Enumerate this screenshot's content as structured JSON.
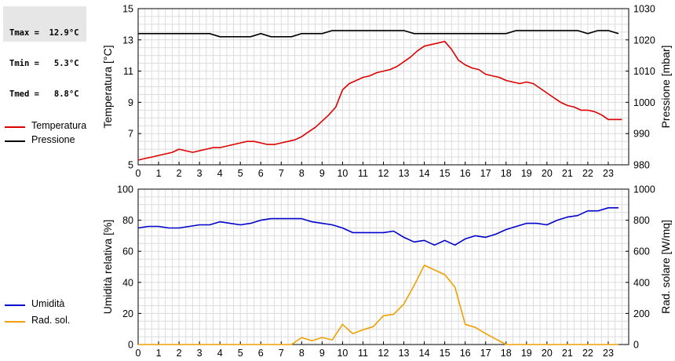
{
  "stats": [
    {
      "label": "Tmax",
      "value": "12.9°C"
    },
    {
      "label": "Tmin",
      "value": "5.3°C"
    },
    {
      "label": "Tmed",
      "value": "8.8°C"
    }
  ],
  "legend_top": [
    {
      "name": "Temperatura",
      "color": "#dd0000"
    },
    {
      "name": "Pressione",
      "color": "#000000"
    }
  ],
  "legend_bottom": [
    {
      "name": "Umidità",
      "color": "#0000cc"
    },
    {
      "name": "Rad. sol.",
      "color": "#f0a000"
    }
  ],
  "chart_data": [
    {
      "type": "line",
      "xlabel": "",
      "x_ticks": [
        "0",
        "1",
        "2",
        "3",
        "4",
        "5",
        "6",
        "7",
        "8",
        "9",
        "10",
        "11",
        "12",
        "13",
        "14",
        "15",
        "16",
        "17",
        "18",
        "19",
        "20",
        "21",
        "22",
        "23"
      ],
      "xlim": [
        0,
        24
      ],
      "grid": true,
      "left_axis": {
        "label": "Temperatura [°C]",
        "ylim": [
          5,
          15
        ],
        "ticks": [
          "5",
          "7",
          "9",
          "11",
          "13",
          "15"
        ]
      },
      "right_axis": {
        "label": "Pressione [mbar]",
        "ylim": [
          980,
          1030
        ],
        "ticks": [
          "980",
          "990",
          "1000",
          "1010",
          "1020",
          "1030"
        ]
      },
      "series": [
        {
          "name": "Temperatura",
          "axis": "left",
          "color": "#dd0000",
          "x": [
            0,
            0.33,
            0.67,
            1,
            1.33,
            1.67,
            2,
            2.33,
            2.67,
            3,
            3.33,
            3.67,
            4,
            4.33,
            4.67,
            5,
            5.33,
            5.67,
            6,
            6.33,
            6.67,
            7,
            7.33,
            7.67,
            8,
            8.33,
            8.67,
            9,
            9.33,
            9.67,
            10,
            10.33,
            10.67,
            11,
            11.33,
            11.67,
            12,
            12.33,
            12.67,
            13,
            13.33,
            13.67,
            14,
            14.33,
            14.67,
            15,
            15.33,
            15.67,
            16,
            16.33,
            16.67,
            17,
            17.33,
            17.67,
            18,
            18.33,
            18.67,
            19,
            19.33,
            19.67,
            20,
            20.33,
            20.67,
            21,
            21.33,
            21.67,
            22,
            22.33,
            22.67,
            23,
            23.33,
            23.67
          ],
          "values": [
            5.3,
            5.4,
            5.5,
            5.6,
            5.7,
            5.8,
            6.0,
            5.9,
            5.8,
            5.9,
            6.0,
            6.1,
            6.1,
            6.2,
            6.3,
            6.4,
            6.5,
            6.5,
            6.4,
            6.3,
            6.3,
            6.4,
            6.5,
            6.6,
            6.8,
            7.1,
            7.4,
            7.8,
            8.2,
            8.7,
            9.8,
            10.2,
            10.4,
            10.6,
            10.7,
            10.9,
            11.0,
            11.1,
            11.3,
            11.6,
            11.9,
            12.3,
            12.6,
            12.7,
            12.8,
            12.9,
            12.4,
            11.7,
            11.4,
            11.2,
            11.1,
            10.8,
            10.7,
            10.6,
            10.4,
            10.3,
            10.2,
            10.3,
            10.2,
            9.9,
            9.6,
            9.3,
            9.0,
            8.8,
            8.7,
            8.5,
            8.5,
            8.4,
            8.2,
            7.9,
            7.9,
            7.9
          ]
        },
        {
          "name": "Pressione",
          "axis": "right",
          "color": "#000000",
          "x": [
            0,
            1,
            2,
            3,
            3.5,
            4,
            5,
            5.5,
            6,
            6.5,
            7,
            7.5,
            8,
            9,
            9.5,
            10,
            11,
            12,
            13,
            13.5,
            14,
            15,
            16,
            17,
            18,
            18.5,
            19,
            20,
            21,
            21.5,
            22,
            22.5,
            23,
            23.5
          ],
          "values": [
            1022,
            1022,
            1022,
            1022,
            1022,
            1021,
            1021,
            1021,
            1022,
            1021,
            1021,
            1021,
            1022,
            1022,
            1023,
            1023,
            1023,
            1023,
            1023,
            1022,
            1022,
            1022,
            1022,
            1022,
            1022,
            1023,
            1023,
            1023,
            1023,
            1023,
            1022,
            1023,
            1023,
            1022
          ]
        }
      ]
    },
    {
      "type": "line",
      "xlabel": "",
      "x_ticks": [
        "0",
        "1",
        "2",
        "3",
        "4",
        "5",
        "6",
        "7",
        "8",
        "9",
        "10",
        "11",
        "12",
        "13",
        "14",
        "15",
        "16",
        "17",
        "18",
        "19",
        "20",
        "21",
        "22",
        "23"
      ],
      "xlim": [
        0,
        24
      ],
      "grid": true,
      "left_axis": {
        "label": "Umidità relativa [%]",
        "ylim": [
          0,
          100
        ],
        "ticks": [
          "0",
          "20",
          "40",
          "60",
          "80",
          "100"
        ]
      },
      "right_axis": {
        "label": "Rad. solare [W/mq]",
        "ylim": [
          0,
          1000
        ],
        "ticks": [
          "0",
          "200",
          "400",
          "600",
          "800",
          "1000"
        ]
      },
      "series": [
        {
          "name": "Umidità",
          "axis": "left",
          "color": "#0000cc",
          "x": [
            0,
            0.5,
            1,
            1.5,
            2,
            2.5,
            3,
            3.5,
            4,
            4.5,
            5,
            5.5,
            6,
            6.5,
            7,
            7.5,
            8,
            8.5,
            9,
            9.5,
            10,
            10.5,
            11,
            11.5,
            12,
            12.5,
            13,
            13.5,
            14,
            14.5,
            15,
            15.5,
            16,
            16.5,
            17,
            17.5,
            18,
            18.5,
            19,
            19.5,
            20,
            20.5,
            21,
            21.5,
            22,
            22.5,
            23,
            23.5
          ],
          "values": [
            75,
            76,
            76,
            75,
            75,
            76,
            77,
            77,
            79,
            78,
            77,
            78,
            80,
            81,
            81,
            81,
            81,
            79,
            78,
            77,
            75,
            72,
            72,
            72,
            72,
            73,
            69,
            66,
            67,
            64,
            67,
            64,
            68,
            70,
            69,
            71,
            74,
            76,
            78,
            78,
            77,
            80,
            82,
            83,
            86,
            86,
            88,
            88
          ]
        },
        {
          "name": "Rad. sol.",
          "axis": "right",
          "color": "#f0a000",
          "x": [
            0,
            1,
            2,
            3,
            4,
            5,
            6,
            7,
            7.5,
            8,
            8.5,
            9,
            9.5,
            10,
            10.5,
            11,
            11.5,
            12,
            12.5,
            13,
            13.5,
            14,
            14.5,
            15,
            15.5,
            16,
            16.5,
            17,
            17.5,
            18,
            19,
            20,
            21,
            22,
            23,
            23.5
          ],
          "values": [
            0,
            0,
            0,
            0,
            0,
            0,
            0,
            0,
            0,
            45,
            25,
            45,
            30,
            130,
            70,
            95,
            115,
            185,
            195,
            260,
            380,
            510,
            480,
            450,
            370,
            130,
            110,
            70,
            35,
            0,
            0,
            0,
            0,
            0,
            0,
            0
          ]
        }
      ]
    }
  ]
}
